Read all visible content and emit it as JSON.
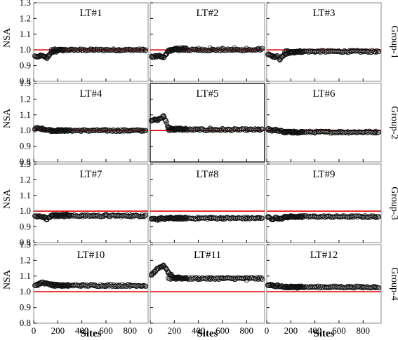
{
  "chart_data": {
    "type": "scatter",
    "layout": {
      "rows": 4,
      "cols": 3
    },
    "ylabel": "NSA",
    "xlabel": "Sites",
    "xlim": [
      0,
      950
    ],
    "ylim": [
      0.8,
      1.3
    ],
    "xticks": [
      0,
      200,
      400,
      600,
      800
    ],
    "yticks": [
      0.8,
      0.9,
      1.0,
      1.1,
      1.2,
      1.3
    ],
    "reference_line": {
      "y": 1.0,
      "color": "#e00000"
    },
    "marker": "open-circle",
    "row_labels": [
      "Group-1",
      "Group-2",
      "Group-3",
      "Group-4"
    ],
    "panels": [
      {
        "title": "LT#1",
        "row": 0,
        "col": 0,
        "baseline": 1.0,
        "points": [
          [
            10,
            0.96
          ],
          [
            30,
            0.955
          ],
          [
            50,
            0.96
          ],
          [
            70,
            0.965
          ],
          [
            90,
            0.955
          ],
          [
            110,
            0.95
          ],
          [
            130,
            0.97
          ],
          [
            150,
            0.985
          ],
          [
            170,
            0.99
          ],
          [
            200,
            0.995
          ],
          [
            250,
            1.0
          ],
          [
            300,
            1.0
          ],
          [
            400,
            0.998
          ],
          [
            500,
            1.0
          ],
          [
            600,
            1.002
          ],
          [
            700,
            1.0
          ],
          [
            800,
            1.0
          ],
          [
            900,
            1.0
          ],
          [
            930,
            1.0
          ]
        ]
      },
      {
        "title": "LT#2",
        "row": 0,
        "col": 1,
        "baseline": 1.0,
        "points": [
          [
            10,
            0.96
          ],
          [
            30,
            0.955
          ],
          [
            50,
            0.96
          ],
          [
            70,
            0.965
          ],
          [
            90,
            0.955
          ],
          [
            110,
            0.95
          ],
          [
            130,
            0.97
          ],
          [
            150,
            0.99
          ],
          [
            200,
            1.005
          ],
          [
            300,
            1.01
          ],
          [
            400,
            1.01
          ],
          [
            500,
            1.012
          ],
          [
            600,
            1.01
          ],
          [
            700,
            1.012
          ],
          [
            800,
            1.01
          ],
          [
            900,
            1.01
          ],
          [
            930,
            1.01
          ]
        ]
      },
      {
        "title": "LT#3",
        "row": 0,
        "col": 2,
        "baseline": 0.99,
        "points": [
          [
            10,
            0.97
          ],
          [
            30,
            0.965
          ],
          [
            50,
            0.96
          ],
          [
            70,
            0.955
          ],
          [
            90,
            0.96
          ],
          [
            110,
            0.94
          ],
          [
            130,
            0.96
          ],
          [
            150,
            0.975
          ],
          [
            200,
            0.985
          ],
          [
            300,
            0.99
          ],
          [
            400,
            0.99
          ],
          [
            500,
            0.992
          ],
          [
            600,
            0.99
          ],
          [
            700,
            0.99
          ],
          [
            800,
            0.992
          ],
          [
            900,
            0.99
          ],
          [
            930,
            0.99
          ]
        ]
      },
      {
        "title": "LT#4",
        "row": 1,
        "col": 0,
        "baseline": 1.0,
        "points": [
          [
            10,
            1.01
          ],
          [
            30,
            1.015
          ],
          [
            50,
            1.01
          ],
          [
            70,
            1.012
          ],
          [
            90,
            1.008
          ],
          [
            110,
            1.005
          ],
          [
            150,
            1.0
          ],
          [
            200,
            1.0
          ],
          [
            300,
            1.0
          ],
          [
            400,
            1.0
          ],
          [
            500,
            1.0
          ],
          [
            600,
            1.0
          ],
          [
            700,
            1.0
          ],
          [
            800,
            1.0
          ],
          [
            900,
            1.0
          ],
          [
            930,
            1.0
          ]
        ]
      },
      {
        "title": "LT#5",
        "row": 1,
        "col": 1,
        "baseline": 1.005,
        "points": [
          [
            10,
            1.06
          ],
          [
            30,
            1.07
          ],
          [
            50,
            1.065
          ],
          [
            70,
            1.07
          ],
          [
            90,
            1.08
          ],
          [
            110,
            1.09
          ],
          [
            130,
            1.06
          ],
          [
            150,
            1.02
          ],
          [
            200,
            1.01
          ],
          [
            300,
            1.01
          ],
          [
            400,
            1.01
          ],
          [
            500,
            1.015
          ],
          [
            600,
            1.012
          ],
          [
            700,
            1.01
          ],
          [
            800,
            1.01
          ],
          [
            900,
            1.01
          ],
          [
            930,
            1.01
          ]
        ]
      },
      {
        "title": "LT#6",
        "row": 1,
        "col": 2,
        "baseline": 0.99,
        "points": [
          [
            10,
            1.01
          ],
          [
            30,
            1.005
          ],
          [
            50,
            1.0
          ],
          [
            70,
            1.005
          ],
          [
            90,
            1.0
          ],
          [
            110,
            1.0
          ],
          [
            150,
            0.99
          ],
          [
            200,
            0.99
          ],
          [
            300,
            0.99
          ],
          [
            400,
            0.99
          ],
          [
            500,
            0.99
          ],
          [
            600,
            0.99
          ],
          [
            700,
            0.99
          ],
          [
            800,
            0.99
          ],
          [
            900,
            0.99
          ],
          [
            930,
            0.99
          ]
        ]
      },
      {
        "title": "LT#7",
        "row": 2,
        "col": 0,
        "baseline": 0.97,
        "points": [
          [
            10,
            0.97
          ],
          [
            30,
            0.965
          ],
          [
            50,
            0.97
          ],
          [
            70,
            0.965
          ],
          [
            90,
            0.96
          ],
          [
            110,
            0.95
          ],
          [
            130,
            0.96
          ],
          [
            150,
            0.97
          ],
          [
            200,
            0.975
          ],
          [
            300,
            0.975
          ],
          [
            400,
            0.975
          ],
          [
            500,
            0.975
          ],
          [
            600,
            0.978
          ],
          [
            700,
            0.975
          ],
          [
            800,
            0.975
          ],
          [
            900,
            0.975
          ],
          [
            930,
            0.975
          ]
        ]
      },
      {
        "title": "LT#8",
        "row": 2,
        "col": 1,
        "baseline": 0.955,
        "points": [
          [
            10,
            0.95
          ],
          [
            30,
            0.955
          ],
          [
            50,
            0.945
          ],
          [
            70,
            0.95
          ],
          [
            90,
            0.955
          ],
          [
            110,
            0.95
          ],
          [
            150,
            0.955
          ],
          [
            200,
            0.955
          ],
          [
            300,
            0.955
          ],
          [
            400,
            0.955
          ],
          [
            500,
            0.96
          ],
          [
            600,
            0.955
          ],
          [
            700,
            0.955
          ],
          [
            800,
            0.955
          ],
          [
            900,
            0.955
          ],
          [
            930,
            0.955
          ]
        ]
      },
      {
        "title": "LT#9",
        "row": 2,
        "col": 2,
        "baseline": 0.965,
        "points": [
          [
            10,
            0.96
          ],
          [
            30,
            0.955
          ],
          [
            50,
            0.95
          ],
          [
            70,
            0.96
          ],
          [
            90,
            0.955
          ],
          [
            110,
            0.95
          ],
          [
            150,
            0.96
          ],
          [
            200,
            0.965
          ],
          [
            300,
            0.965
          ],
          [
            400,
            0.965
          ],
          [
            500,
            0.968
          ],
          [
            600,
            0.965
          ],
          [
            700,
            0.965
          ],
          [
            800,
            0.965
          ],
          [
            900,
            0.965
          ],
          [
            930,
            0.965
          ]
        ]
      },
      {
        "title": "LT#10",
        "row": 3,
        "col": 0,
        "baseline": 1.04,
        "points": [
          [
            10,
            1.04
          ],
          [
            30,
            1.045
          ],
          [
            50,
            1.05
          ],
          [
            70,
            1.06
          ],
          [
            90,
            1.055
          ],
          [
            110,
            1.05
          ],
          [
            150,
            1.045
          ],
          [
            200,
            1.04
          ],
          [
            300,
            1.04
          ],
          [
            400,
            1.04
          ],
          [
            500,
            1.04
          ],
          [
            600,
            1.04
          ],
          [
            700,
            1.035
          ],
          [
            800,
            1.035
          ],
          [
            900,
            1.035
          ],
          [
            930,
            1.035
          ]
        ]
      },
      {
        "title": "LT#11",
        "row": 3,
        "col": 1,
        "baseline": 1.085,
        "points": [
          [
            10,
            1.11
          ],
          [
            30,
            1.12
          ],
          [
            50,
            1.14
          ],
          [
            70,
            1.15
          ],
          [
            90,
            1.16
          ],
          [
            110,
            1.17
          ],
          [
            130,
            1.15
          ],
          [
            150,
            1.12
          ],
          [
            200,
            1.09
          ],
          [
            300,
            1.085
          ],
          [
            400,
            1.08
          ],
          [
            500,
            1.08
          ],
          [
            600,
            1.085
          ],
          [
            700,
            1.08
          ],
          [
            800,
            1.075
          ],
          [
            900,
            1.08
          ],
          [
            930,
            1.08
          ]
        ]
      },
      {
        "title": "LT#12",
        "row": 3,
        "col": 2,
        "baseline": 1.03,
        "points": [
          [
            10,
            1.04
          ],
          [
            30,
            1.045
          ],
          [
            50,
            1.04
          ],
          [
            70,
            1.035
          ],
          [
            90,
            1.04
          ],
          [
            110,
            1.035
          ],
          [
            150,
            1.03
          ],
          [
            200,
            1.03
          ],
          [
            300,
            1.03
          ],
          [
            400,
            1.03
          ],
          [
            500,
            1.03
          ],
          [
            600,
            1.03
          ],
          [
            700,
            1.028
          ],
          [
            800,
            1.025
          ],
          [
            900,
            1.025
          ],
          [
            930,
            1.025
          ]
        ]
      }
    ]
  }
}
